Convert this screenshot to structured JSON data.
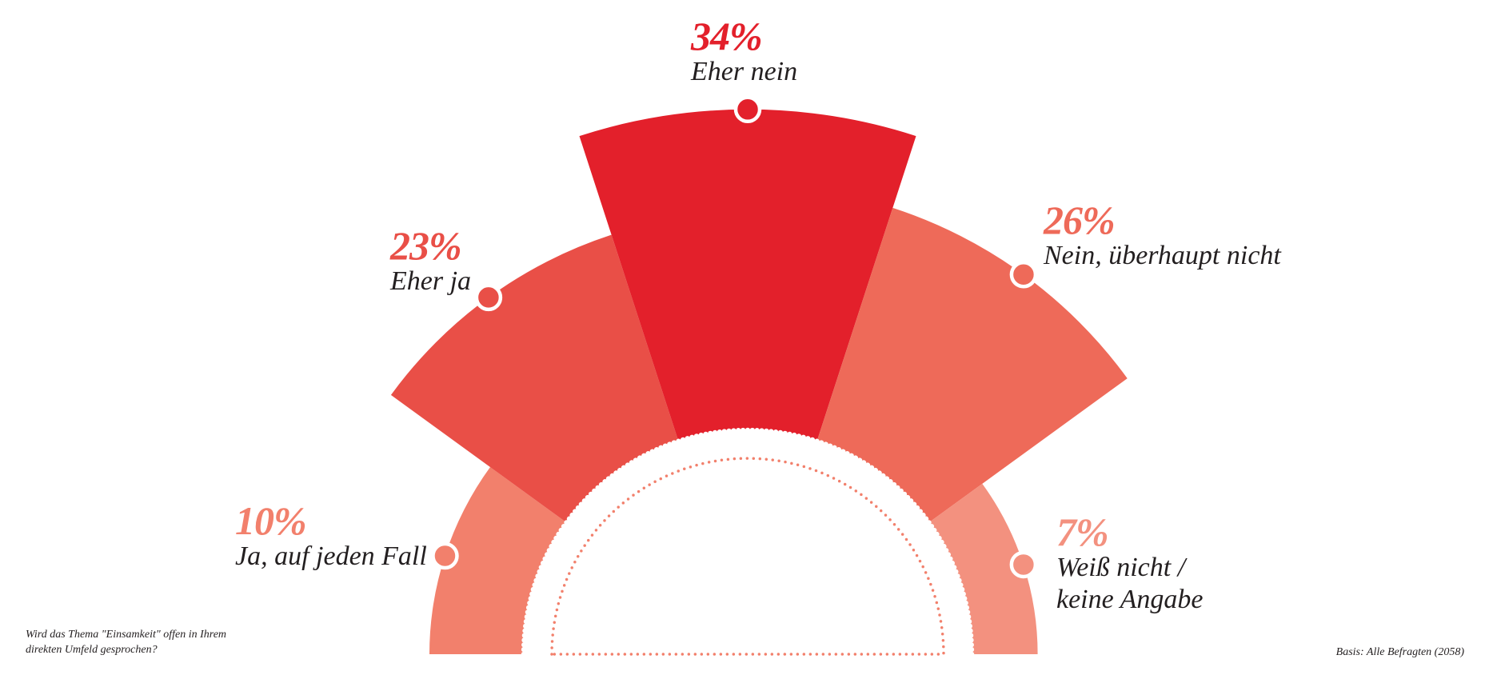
{
  "chart_data": {
    "type": "polar-area",
    "categories": [
      "Ja, auf jeden Fall",
      "Eher ja",
      "Eher nein",
      "Nein, überhaupt nicht",
      "Weiß nicht / keine Angabe"
    ],
    "values": [
      10,
      23,
      34,
      26,
      7
    ],
    "value_labels": [
      "10%",
      "23%",
      "34%",
      "26%",
      "7%"
    ],
    "colors": [
      "#f2806c",
      "#e94f47",
      "#e3202b",
      "#ee6a59",
      "#f3917f"
    ],
    "question": "Wird das Thema \"Einsamkeit\" offen in Ihrem direkten Umfeld gesprochen?",
    "source": "Basis: Alle Befragten (2058)"
  }
}
